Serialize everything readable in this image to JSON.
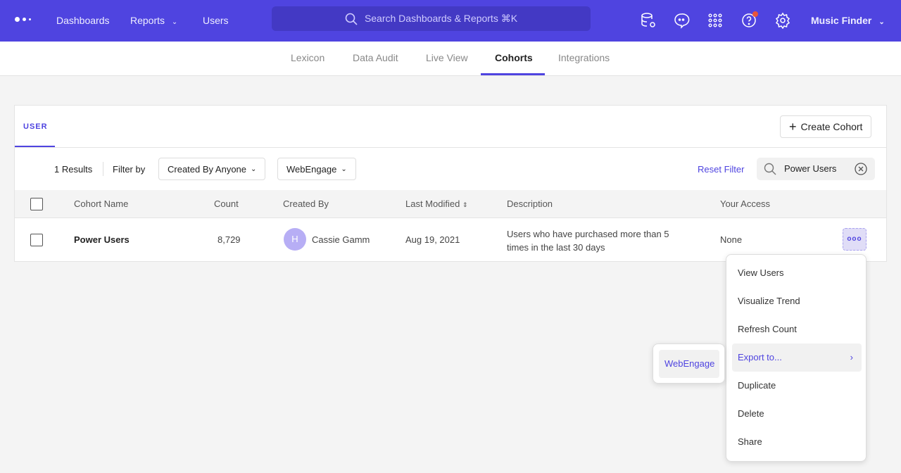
{
  "topbar": {
    "nav": [
      "Dashboards",
      "Reports",
      "Users"
    ],
    "search_placeholder": "Search Dashboards & Reports ⌘K",
    "project": "Music Finder",
    "accent": "#4f44e0",
    "icons": [
      "data-settings-icon",
      "chat-icon",
      "apps-grid-icon",
      "help-icon",
      "gear-icon"
    ]
  },
  "subnav": {
    "tabs": [
      "Lexicon",
      "Data Audit",
      "Live View",
      "Cohorts",
      "Integrations"
    ],
    "active": "Cohorts"
  },
  "panel": {
    "tab": "USER",
    "create_label": "Create Cohort",
    "results": "1 Results",
    "filter_by": "Filter by",
    "filter_creator": "Created By Anyone",
    "filter_source": "WebEngage",
    "reset": "Reset Filter",
    "search_value": "Power Users"
  },
  "table": {
    "headers": [
      "Cohort Name",
      "Count",
      "Created By",
      "Last Modified",
      "Description",
      "Your Access"
    ],
    "rows": [
      {
        "name": "Power Users",
        "count": "8,729",
        "avatar": "H",
        "creator": "Cassie Gamm",
        "modified": "Aug 19, 2021",
        "description": "Users who have purchased more than 5 times in the last 30 days",
        "access": "None"
      }
    ]
  },
  "menu": {
    "items": [
      "View Users",
      "Visualize Trend",
      "Refresh Count",
      "Export to...",
      "Duplicate",
      "Delete",
      "Share"
    ],
    "submenu": [
      "WebEngage"
    ]
  }
}
